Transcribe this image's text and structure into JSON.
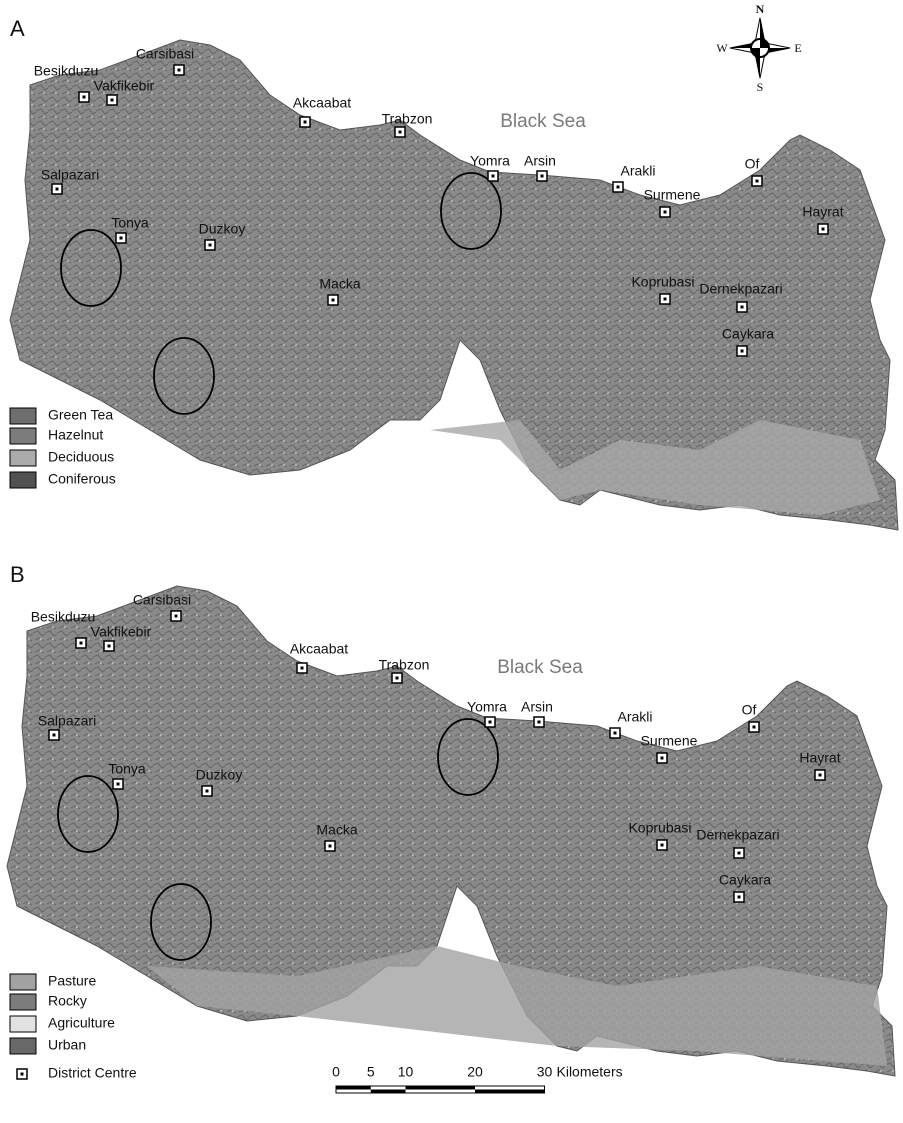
{
  "panels": [
    {
      "label": "A",
      "sea": "Black Sea",
      "districts": [
        "Carsibasi",
        "Besikduzu",
        "Vakfikebir",
        "Akcaabat",
        "Trabzon",
        "Yomra",
        "Arsin",
        "Arakli",
        "Of",
        "Surmene",
        "Hayrat",
        "Salpazari",
        "Tonya",
        "Duzkoy",
        "Macka",
        "Koprubasi",
        "Dernekpazari",
        "Caykara"
      ],
      "legend": [
        {
          "name": "Green Tea",
          "color": "#6e6e6e"
        },
        {
          "name": "Hazelnut",
          "color": "#7c7c7c"
        },
        {
          "name": "Deciduous",
          "color": "#ababab"
        },
        {
          "name": "Coniferous",
          "color": "#525252"
        }
      ]
    },
    {
      "label": "B",
      "sea": "Black Sea",
      "districts": [
        "Carsibasi",
        "Besikduzu",
        "Vakfikebir",
        "Akcaabat",
        "Trabzon",
        "Yomra",
        "Arsin",
        "Arakli",
        "Of",
        "Surmene",
        "Hayrat",
        "Salpazari",
        "Tonya",
        "Duzkoy",
        "Macka",
        "Koprubasi",
        "Dernekpazari",
        "Caykara"
      ],
      "legend": [
        {
          "name": "Pasture",
          "color": "#a2a2a2"
        },
        {
          "name": "Rocky",
          "color": "#7c7c7c"
        },
        {
          "name": "Agriculture",
          "color": "#e2e2e2"
        },
        {
          "name": "Urban",
          "color": "#686868"
        }
      ],
      "marker_legend": "District Centre"
    }
  ],
  "compass": {
    "north": "N",
    "south": "S",
    "east": "E",
    "west": "W"
  },
  "scale_bar": {
    "ticks": [
      0,
      5,
      10,
      20,
      30
    ],
    "unit": "Kilometers"
  }
}
